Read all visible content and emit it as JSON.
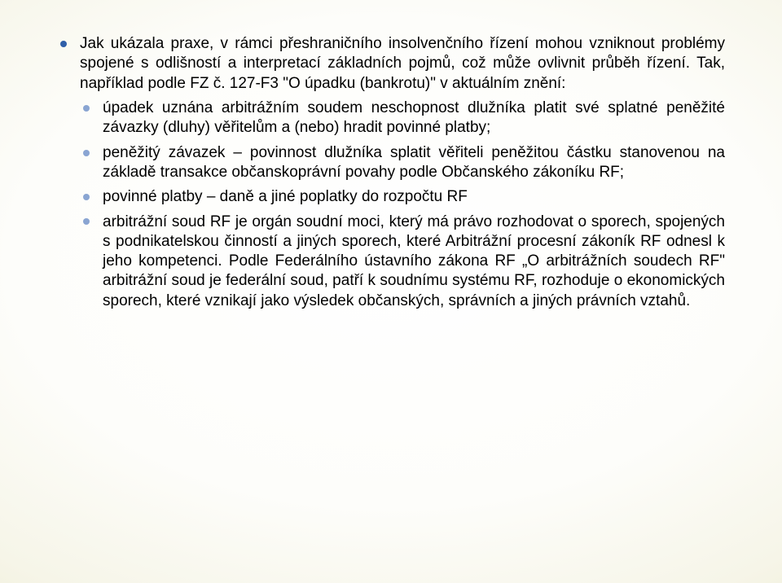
{
  "colors": {
    "bullet_primary": "#2f5fa8",
    "bullet_secondary": "#8aa5d2",
    "text": "#000000",
    "bg_center": "#ffffff",
    "bg_edge": "#d6d090"
  },
  "typography": {
    "font_family": "Arial",
    "font_size_pt": 14,
    "line_height": 1.28
  },
  "bullets": [
    {
      "text": "Jak ukázala praxe, v rámci přeshraničního insolvenčního řízení mohou vzniknout problémy spojené s odlišností a interpretací základních pojmů, což může ovlivnit průběh řízení. Tak, například podle FZ č. 127-F3 \"O úpadku (bankrotu)\" v aktuálním znění:",
      "sub": [
        "úpadek uznána arbitrážním soudem neschopnost dlužníka platit své splatné peněžité závazky (dluhy) věřitelům a (nebo) hradit povinné platby;",
        "peněžitý závazek – povinnost dlužníka splatit věřiteli peněžitou částku stanovenou na základě transakce občanskoprávní povahy podle Občanského zákoníku RF;",
        "povinné platby – daně a jiné poplatky do rozpočtu RF",
        "arbitrážní soud RF je orgán soudní moci, který má právo rozhodovat o sporech, spojených s podnikatelskou činností a jiných sporech, které Arbitrážní procesní zákoník RF odnesl k jeho kompetenci. Podle Federálního ústavního zákona RF „O arbitrážních soudech RF\"  arbitrážní soud je federální soud, patří k soudnímu systému RF, rozhoduje o ekonomických sporech, které vznikají jako výsledek občanských, správních a jiných právních vztahů."
      ]
    }
  ]
}
